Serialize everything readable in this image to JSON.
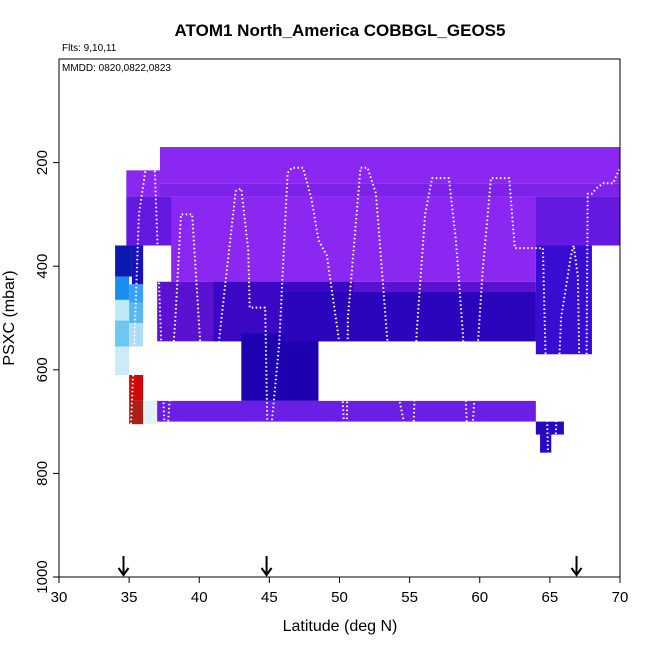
{
  "chart_data": {
    "type": "heatmap",
    "title": "ATOM1 North_America COBBGL_GEOS5",
    "note_flights": "Flts: 9,10,11",
    "note_dates": "MMDD: 0820,0822,0823",
    "xlabel": "Latitude (deg N)",
    "ylabel": "PSXC (mbar)",
    "xlim": [
      30,
      70
    ],
    "ylim": [
      1000,
      0
    ],
    "x_ticks": [
      30,
      35,
      40,
      45,
      50,
      55,
      60,
      65,
      70
    ],
    "y_ticks": [
      200,
      400,
      600,
      800,
      1000
    ],
    "grid": false,
    "legend": "none",
    "colors": {
      "background": "#ffffff",
      "trajectory": "#ffffff",
      "arrow": "#000000",
      "frame": "#000000"
    },
    "latitude_markers": [
      34.6,
      44.8,
      66.9
    ],
    "cells": [
      {
        "x0": 37.2,
        "x1": 71.2,
        "y0": 170,
        "y1": 240,
        "color": "#8a27f0"
      },
      {
        "x0": 34.8,
        "x1": 37.2,
        "y0": 215,
        "y1": 265,
        "color": "#8a27f0"
      },
      {
        "x0": 37.2,
        "x1": 71.2,
        "y0": 240,
        "y1": 265,
        "color": "#7f22e9"
      },
      {
        "x0": 34.8,
        "x1": 71.2,
        "y0": 265,
        "y1": 360,
        "color": "#6418e0"
      },
      {
        "x0": 38.0,
        "x1": 64.0,
        "y0": 265,
        "y1": 430,
        "color": "#8a27f0"
      },
      {
        "x0": 37.0,
        "x1": 64.0,
        "y0": 430,
        "y1": 545,
        "color": "#5a12d0"
      },
      {
        "x0": 41.0,
        "x1": 51.0,
        "y0": 430,
        "y1": 545,
        "color": "#3a08c5"
      },
      {
        "x0": 43.0,
        "x1": 48.5,
        "y0": 530,
        "y1": 660,
        "color": "#1e00b0"
      },
      {
        "x0": 46.0,
        "x1": 64.0,
        "y0": 450,
        "y1": 545,
        "color": "#2a05bc"
      },
      {
        "x0": 64.0,
        "x1": 68.0,
        "y0": 360,
        "y1": 570,
        "color": "#3a0bd0"
      },
      {
        "x0": 34.0,
        "x1": 35.2,
        "y0": 360,
        "y1": 420,
        "color": "#0a1ab0"
      },
      {
        "x0": 35.2,
        "x1": 36.0,
        "y0": 360,
        "y1": 435,
        "color": "#1a10b8"
      },
      {
        "x0": 34.0,
        "x1": 35.0,
        "y0": 420,
        "y1": 465,
        "color": "#1a8ef0"
      },
      {
        "x0": 35.0,
        "x1": 36.0,
        "y0": 435,
        "y1": 470,
        "color": "#3aa0f5"
      },
      {
        "x0": 34.0,
        "x1": 35.0,
        "y0": 465,
        "y1": 505,
        "color": "#bde8f8"
      },
      {
        "x0": 35.0,
        "x1": 36.0,
        "y0": 470,
        "y1": 510,
        "color": "#5ab7f0"
      },
      {
        "x0": 34.0,
        "x1": 35.0,
        "y0": 505,
        "y1": 555,
        "color": "#6ec6f2"
      },
      {
        "x0": 35.0,
        "x1": 36.0,
        "y0": 510,
        "y1": 555,
        "color": "#b0ddf4"
      },
      {
        "x0": 34.0,
        "x1": 35.0,
        "y0": 555,
        "y1": 610,
        "color": "#cdeaf7"
      },
      {
        "x0": 35.0,
        "x1": 36.0,
        "y0": 555,
        "y1": 610,
        "color": "#ffffff"
      },
      {
        "x0": 35.0,
        "x1": 36.0,
        "y0": 610,
        "y1": 660,
        "color": "#cc0a0a"
      },
      {
        "x0": 35.0,
        "x1": 36.0,
        "y0": 660,
        "y1": 705,
        "color": "#a82218"
      },
      {
        "x0": 36.0,
        "x1": 37.0,
        "y0": 660,
        "y1": 705,
        "color": "#e0f4fa"
      },
      {
        "x0": 37.0,
        "x1": 64.0,
        "y0": 660,
        "y1": 700,
        "color": "#6a1ee6"
      },
      {
        "x0": 64.0,
        "x1": 66.0,
        "y0": 700,
        "y1": 725,
        "color": "#2808bc"
      },
      {
        "x0": 64.3,
        "x1": 65.1,
        "y0": 725,
        "y1": 760,
        "color": "#2808bc"
      }
    ],
    "trajectory_x": [
      35.0,
      35.3,
      35.7,
      36.3,
      36.8,
      36.9,
      37.6,
      38.3,
      38.7,
      39.5,
      40.0,
      40.2,
      41.3,
      42.0,
      42.6,
      43.0,
      43.5,
      43.6,
      44.7,
      44.8,
      44.9,
      45.7,
      46.3,
      46.6,
      47.4,
      48.0,
      48.5,
      49.1,
      50.0,
      50.5,
      50.6,
      51.5,
      52.0,
      52.6,
      53.0,
      53.4,
      53.9,
      55.2,
      55.5,
      56.1,
      56.6,
      57.0,
      57.8,
      58.3,
      58.8,
      59.2,
      59.3,
      60.2,
      60.8,
      61.2,
      62.1,
      62.5,
      63.0,
      63.4,
      64.5,
      65.0,
      65.1,
      65.8,
      66.5,
      66.7,
      67.0,
      67.2,
      67.6,
      67.7,
      68.0,
      68.3,
      68.8,
      69.5,
      70.0
    ],
    "trajectory_y": [
      790,
      600,
      300,
      190,
      190,
      270,
      770,
      500,
      300,
      300,
      520,
      600,
      570,
      400,
      255,
      250,
      370,
      480,
      480,
      630,
      780,
      550,
      220,
      210,
      210,
      270,
      350,
      380,
      550,
      790,
      500,
      210,
      210,
      260,
      400,
      540,
      610,
      780,
      530,
      300,
      230,
      230,
      230,
      350,
      530,
      780,
      790,
      410,
      230,
      230,
      230,
      365,
      365,
      365,
      365,
      910,
      915,
      500,
      380,
      360,
      420,
      760,
      650,
      260,
      260,
      250,
      240,
      240,
      210
    ]
  }
}
